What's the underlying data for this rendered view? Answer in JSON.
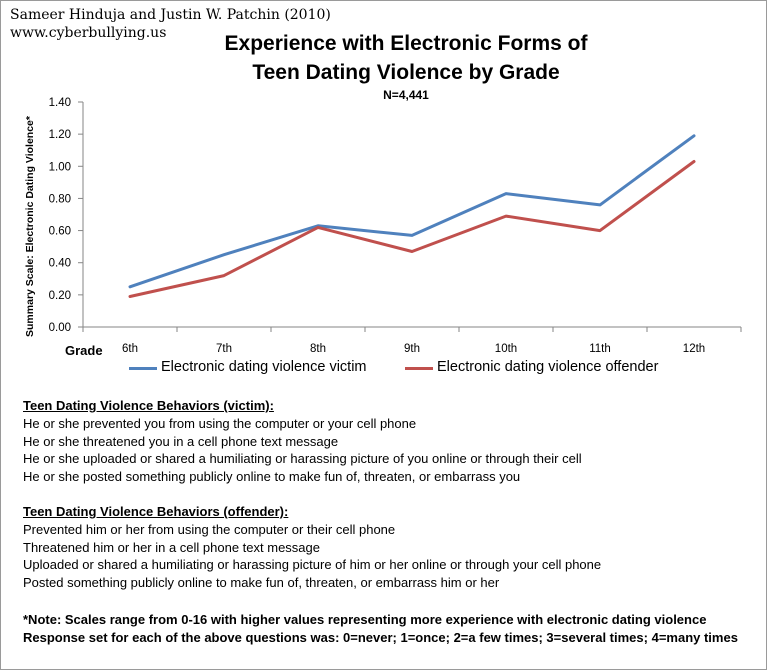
{
  "credit": {
    "author": "Sameer Hinduja and Justin W. Patchin (2010)",
    "site": "www.cyberbullying.us"
  },
  "colors": {
    "victim": "#4f81bd",
    "offender": "#c0504d",
    "axis": "#868686"
  },
  "chart_data": {
    "type": "line",
    "title_lines": [
      "Experience with Electronic Forms of",
      "Teen Dating Violence by Grade"
    ],
    "subtitle": "N=4,441",
    "ylabel": "Summary Scale: Electronic Dating Violence*",
    "xlabel": "Grade",
    "categories": [
      "6th",
      "7th",
      "8th",
      "9th",
      "10th",
      "11th",
      "12th"
    ],
    "ylim": [
      0,
      1.4
    ],
    "yticks": [
      "0.00",
      "0.20",
      "0.40",
      "0.60",
      "0.80",
      "1.00",
      "1.20",
      "1.40"
    ],
    "grid": false,
    "legend_position": "bottom",
    "series": [
      {
        "name": "Electronic dating violence victim",
        "color": "#4f81bd",
        "values": [
          0.25,
          0.45,
          0.63,
          0.57,
          0.83,
          0.76,
          1.19
        ]
      },
      {
        "name": "Electronic dating violence offender",
        "color": "#c0504d",
        "values": [
          0.19,
          0.32,
          0.62,
          0.47,
          0.69,
          0.6,
          1.03
        ]
      }
    ]
  },
  "behaviors": {
    "victim": {
      "heading": "Teen Dating Violence Behaviors (victim):",
      "items": [
        "He or she prevented you from using the computer or your cell phone",
        "He or she threatened you in a cell phone text message",
        "He or she uploaded or shared a humiliating or harassing picture of you online or through their cell",
        "He or she posted something publicly online to make fun of, threaten, or embarrass you"
      ]
    },
    "offender": {
      "heading": "Teen Dating Violence Behaviors (offender):",
      "items": [
        "Prevented him or her from using the computer or their cell phone",
        "Threatened him or her in a cell phone text message",
        "Uploaded or shared a humiliating or harassing picture of him or her online or through your cell phone",
        "Posted something publicly online to make fun of, threaten, or embarrass him or her"
      ]
    }
  },
  "note": {
    "line1": "*Note: Scales range from 0-16 with higher values representing more experience with electronic dating violence",
    "line2": "Response set for each of the above questions was: 0=never; 1=once; 2=a few times; 3=several times; 4=many times"
  }
}
